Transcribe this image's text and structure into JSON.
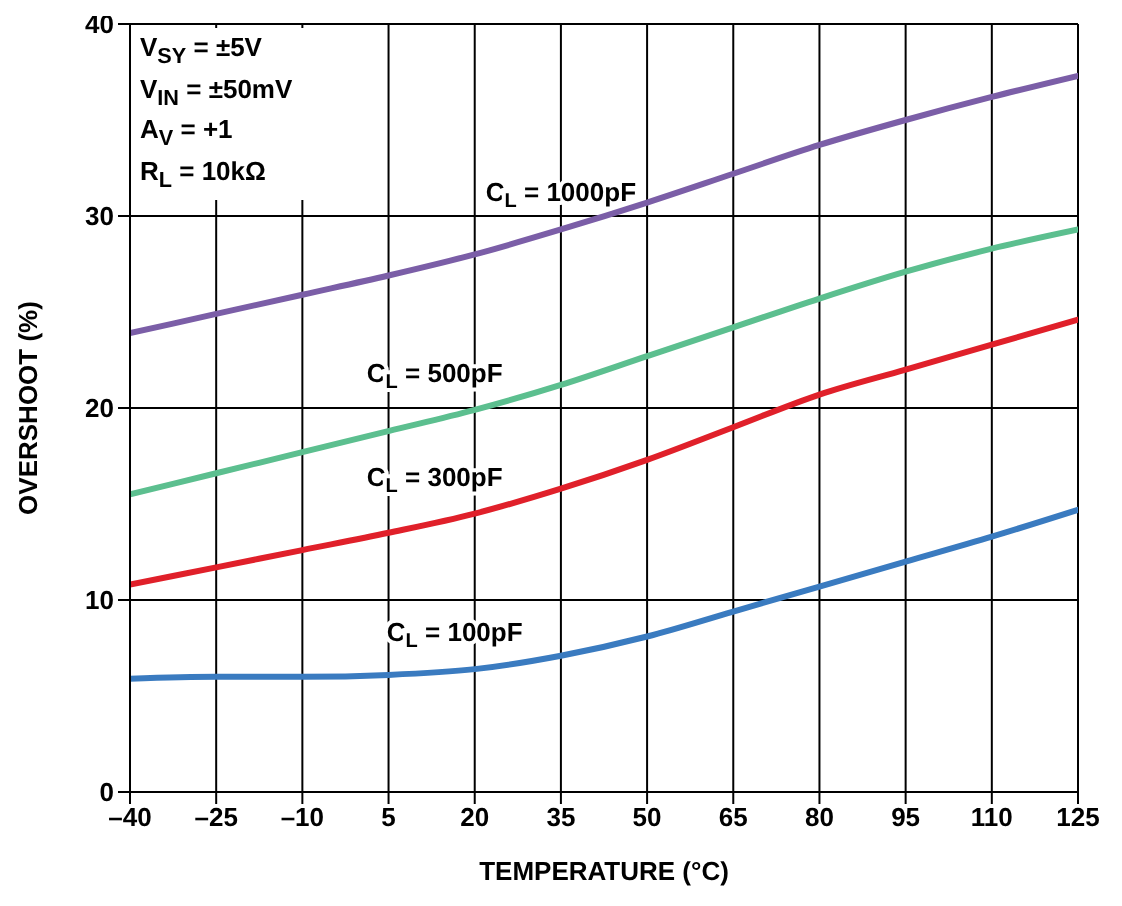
{
  "chart_data": {
    "type": "line",
    "xlabel": "TEMPERATURE (°C)",
    "ylabel": "OVERSHOOT (%)",
    "annotations": [
      "V$_{SY}$ = ±5V",
      "V$_{IN}$ = ±50mV",
      "A$_{V}$ = +1",
      "R$_{L}$ = 10kΩ"
    ],
    "x": [
      -40,
      -25,
      -10,
      5,
      20,
      35,
      50,
      65,
      80,
      95,
      110,
      125
    ],
    "series": [
      {
        "name": "C$_{L}$ = 1000pF",
        "color": "#7b5ea7",
        "values": [
          23.9,
          24.9,
          25.9,
          26.9,
          28.0,
          29.3,
          30.7,
          32.2,
          33.7,
          35.0,
          36.2,
          37.3
        ]
      },
      {
        "name": "C$_{L}$ = 500pF",
        "color": "#5cbf8f",
        "values": [
          15.5,
          16.6,
          17.7,
          18.8,
          19.9,
          21.2,
          22.7,
          24.2,
          25.7,
          27.1,
          28.3,
          29.3
        ]
      },
      {
        "name": "C$_{L}$ = 300pF",
        "color": "#e0202a",
        "values": [
          10.8,
          11.7,
          12.6,
          13.5,
          14.5,
          15.8,
          17.3,
          19.0,
          20.7,
          22.0,
          23.3,
          24.6
        ]
      },
      {
        "name": "C$_{L}$ = 100pF",
        "color": "#3a7bc0",
        "values": [
          5.9,
          6.0,
          6.0,
          6.1,
          6.4,
          7.1,
          8.1,
          9.4,
          10.7,
          12.0,
          13.3,
          14.7
        ]
      }
    ],
    "xlim": [
      -40,
      125
    ],
    "xticks": [
      {
        "value": -40,
        "label": "–40"
      },
      {
        "value": -25,
        "label": "–25"
      },
      {
        "value": -10,
        "label": "–10"
      },
      5,
      20,
      35,
      50,
      65,
      80,
      95,
      110,
      125
    ],
    "ylim": [
      0,
      40
    ],
    "yticks": [
      0,
      10,
      20,
      30,
      40
    ],
    "grid": true,
    "marker": "none",
    "line_style": "solid"
  }
}
